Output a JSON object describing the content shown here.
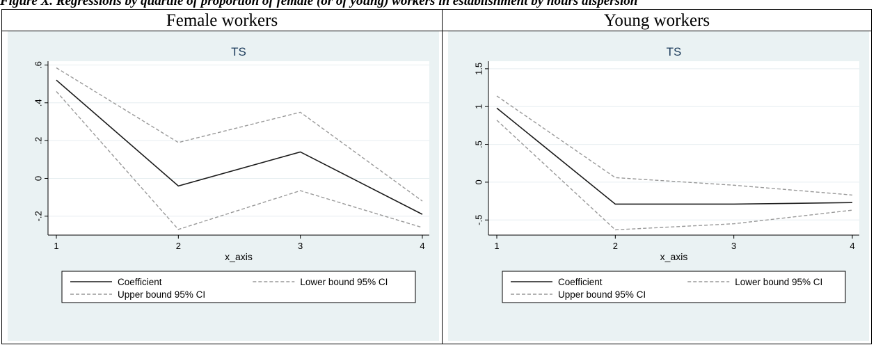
{
  "caption": "Figure X. Regressions by quartile of proportion of female (or of young) workers in establishment by hours dispersion",
  "panels": [
    {
      "title": "Female workers"
    },
    {
      "title": "Young workers"
    }
  ],
  "chart_data": [
    {
      "type": "line",
      "title": "TS",
      "xlabel": "x_axis",
      "ylabel": "",
      "x": [
        1,
        2,
        3,
        4
      ],
      "xticks": [
        "1",
        "2",
        "3",
        "4"
      ],
      "ylim": [
        -0.3,
        0.62
      ],
      "yticks": [
        -0.2,
        0,
        0.2,
        0.4,
        0.6
      ],
      "yticklabels": [
        "-.2",
        "0",
        ".2",
        ".4",
        ".6"
      ],
      "grid": true,
      "legend_position": "bottom",
      "series": [
        {
          "name": "Coefficient",
          "style": "solid",
          "color": "#1a1a1a",
          "values": [
            0.52,
            -0.04,
            0.14,
            -0.19
          ]
        },
        {
          "name": "Lower bound 95% CI",
          "style": "dashed",
          "color": "#999999",
          "values": [
            0.46,
            -0.27,
            -0.065,
            -0.26
          ]
        },
        {
          "name": "Upper bound 95% CI",
          "style": "dashed",
          "color": "#999999",
          "values": [
            0.585,
            0.19,
            0.35,
            -0.12
          ]
        }
      ]
    },
    {
      "type": "line",
      "title": "TS",
      "xlabel": "x_axis",
      "ylabel": "",
      "x": [
        1,
        2,
        3,
        4
      ],
      "xticks": [
        "1",
        "2",
        "3",
        "4"
      ],
      "ylim": [
        -0.7,
        1.6
      ],
      "yticks": [
        -0.5,
        0,
        0.5,
        1,
        1.5
      ],
      "yticklabels": [
        "-.5",
        "0",
        ".5",
        "1",
        "1.5"
      ],
      "grid": true,
      "legend_position": "bottom",
      "series": [
        {
          "name": "Coefficient",
          "style": "solid",
          "color": "#1a1a1a",
          "values": [
            0.98,
            -0.29,
            -0.29,
            -0.27
          ]
        },
        {
          "name": "Lower bound 95% CI",
          "style": "dashed",
          "color": "#999999",
          "values": [
            0.82,
            -0.63,
            -0.55,
            -0.37
          ]
        },
        {
          "name": "Upper bound 95% CI",
          "style": "dashed",
          "color": "#999999",
          "values": [
            1.14,
            0.06,
            -0.04,
            -0.17
          ]
        }
      ]
    }
  ]
}
